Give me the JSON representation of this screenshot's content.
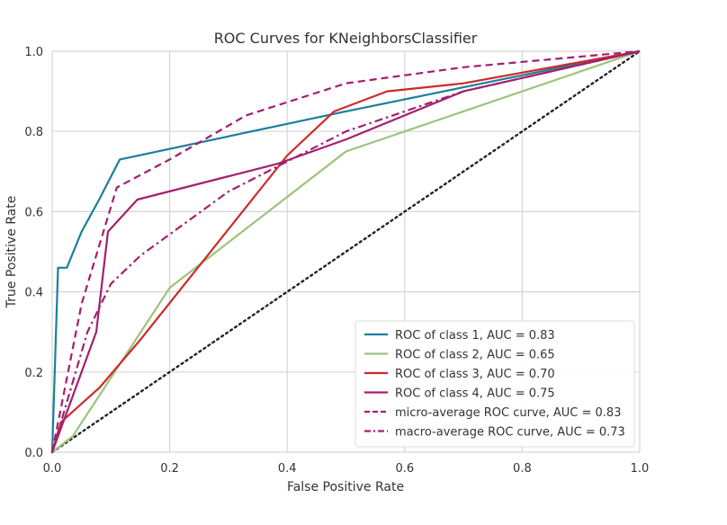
{
  "chart_data": {
    "type": "line",
    "title": "ROC Curves for KNeighborsClassifier",
    "xlabel": "False Positive Rate",
    "ylabel": "True Positive Rate",
    "xlim": [
      0,
      1
    ],
    "ylim": [
      0,
      1
    ],
    "xticks": [
      "0.0",
      "0.2",
      "0.4",
      "0.6",
      "0.8",
      "1.0"
    ],
    "yticks": [
      "0.0",
      "0.2",
      "0.4",
      "0.6",
      "0.8",
      "1.0"
    ],
    "grid": true,
    "legend_position": "lower-right",
    "series": [
      {
        "name": "ROC of class 1, AUC = 0.83",
        "color": "#1b7f9c",
        "style": "solid",
        "points": [
          [
            0,
            0
          ],
          [
            0.01,
            0.46
          ],
          [
            0.025,
            0.46
          ],
          [
            0.05,
            0.55
          ],
          [
            0.08,
            0.63
          ],
          [
            0.115,
            0.73
          ],
          [
            0.5,
            0.85
          ],
          [
            0.7,
            0.91
          ],
          [
            1,
            1
          ]
        ]
      },
      {
        "name": "ROC of class 2, AUC = 0.65",
        "color": "#9cc47a",
        "style": "solid",
        "points": [
          [
            0,
            0
          ],
          [
            0.035,
            0.04
          ],
          [
            0.2,
            0.41
          ],
          [
            0.5,
            0.75
          ],
          [
            1,
            1
          ]
        ]
      },
      {
        "name": "ROC of class 3, AUC = 0.70",
        "color": "#cc2a2a",
        "style": "solid",
        "points": [
          [
            0,
            0
          ],
          [
            0.015,
            0.075
          ],
          [
            0.08,
            0.16
          ],
          [
            0.15,
            0.28
          ],
          [
            0.4,
            0.74
          ],
          [
            0.48,
            0.85
          ],
          [
            0.57,
            0.9
          ],
          [
            0.7,
            0.92
          ],
          [
            1,
            1
          ]
        ]
      },
      {
        "name": "ROC of class 4, AUC = 0.75",
        "color": "#a3206e",
        "style": "solid",
        "points": [
          [
            0,
            0
          ],
          [
            0.015,
            0.06
          ],
          [
            0.075,
            0.3
          ],
          [
            0.095,
            0.55
          ],
          [
            0.145,
            0.63
          ],
          [
            0.385,
            0.72
          ],
          [
            0.5,
            0.78
          ],
          [
            0.7,
            0.9
          ],
          [
            1,
            1
          ]
        ]
      },
      {
        "name": "micro-average ROC curve, AUC = 0.83",
        "color": "#a3206e",
        "style": "dashed",
        "points": [
          [
            0,
            0
          ],
          [
            0.05,
            0.37
          ],
          [
            0.11,
            0.66
          ],
          [
            0.2,
            0.73
          ],
          [
            0.33,
            0.84
          ],
          [
            0.5,
            0.92
          ],
          [
            0.7,
            0.96
          ],
          [
            1,
            1
          ]
        ]
      },
      {
        "name": "macro-average ROC curve, AUC = 0.73",
        "color": "#a3206e",
        "style": "dashdot",
        "points": [
          [
            0,
            0
          ],
          [
            0.02,
            0.1
          ],
          [
            0.06,
            0.3
          ],
          [
            0.1,
            0.42
          ],
          [
            0.15,
            0.49
          ],
          [
            0.3,
            0.65
          ],
          [
            0.5,
            0.8
          ],
          [
            0.7,
            0.9
          ],
          [
            1,
            1
          ]
        ]
      }
    ],
    "reference_line": {
      "color": "#222222",
      "style": "dotted",
      "points": [
        [
          0,
          0
        ],
        [
          1,
          1
        ]
      ]
    }
  }
}
